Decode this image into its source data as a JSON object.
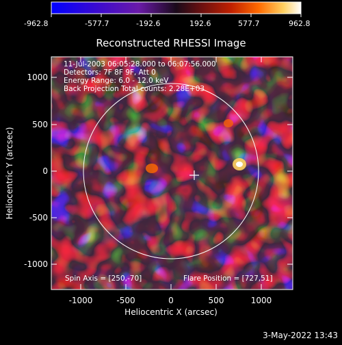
{
  "colorbar": {
    "ticks": [
      "-962.8",
      "-577.7",
      "-192.6",
      "192.6",
      "577.7",
      "962.8"
    ],
    "stops": [
      "#0000ff",
      "#3a0ad0",
      "#6a1aa8",
      "#1a0a1a",
      "#6a1010",
      "#c02000",
      "#ff6a00",
      "#ffd060",
      "#ffffff"
    ]
  },
  "plot": {
    "title": "Reconstructed RHESSI Image",
    "xlabel": "Heliocentric X (arcsec)",
    "ylabel": "Heliocentric Y (arcsec)",
    "x_ticks": [
      "-1000",
      "-500",
      "0",
      "500",
      "1000"
    ],
    "y_ticks": [
      "1000",
      "500",
      "0",
      "-500",
      "-1000"
    ],
    "info_lines": [
      "11-Jul-2003 06:05:28.000 to 06:07:56.000",
      "Detectors: 7F 8F 9F, Att 0",
      "Energy Range: 6.0 - 12.0 keV",
      "Back Projection    Total counts: 2.28E+03"
    ],
    "spin_axis": "Spin Axis = [250,-70]",
    "flare_position": "Flare Position = [727,51]",
    "flare_marker": {
      "x": 250,
      "y": -70
    }
  },
  "footer": {
    "timestamp": "3-May-2022 13:43"
  }
}
